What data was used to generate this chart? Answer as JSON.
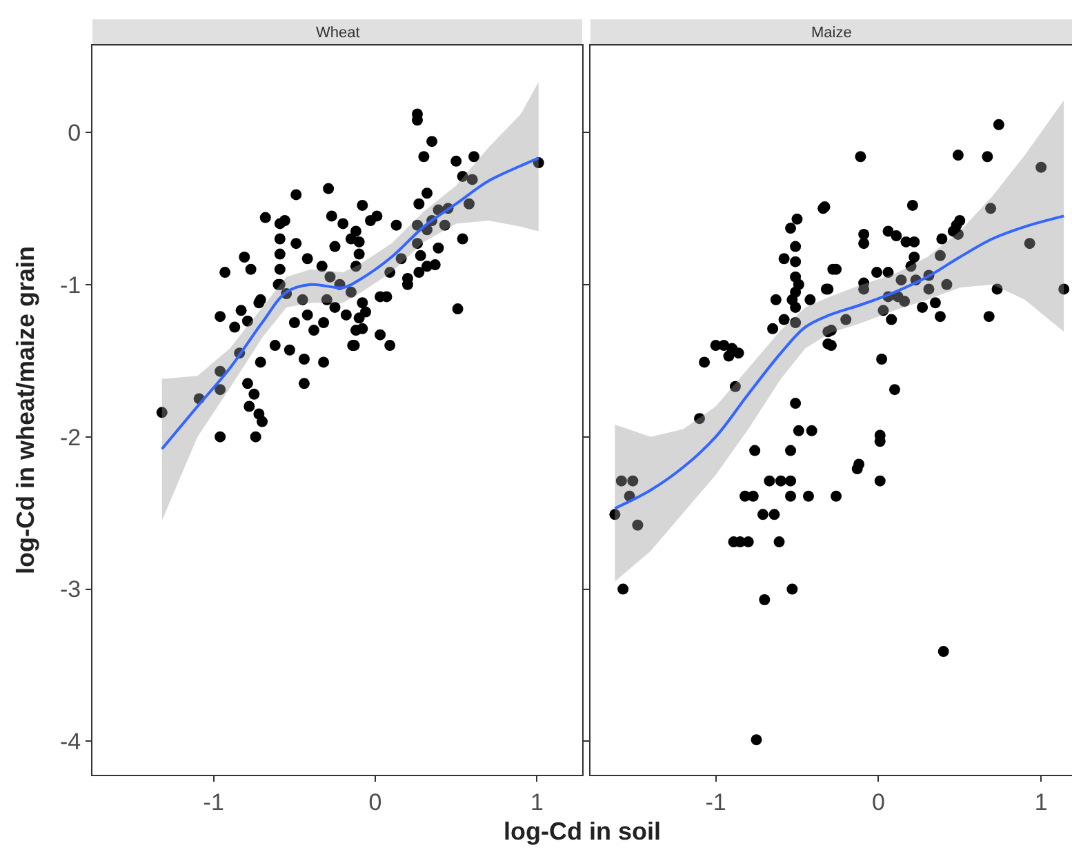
{
  "chart_data": [
    {
      "type": "scatter",
      "title": "Wheat",
      "xlabel": "log-Cd in soil",
      "ylabel": "log-Cd in wheat/maize grain",
      "xlim": [
        -1.75,
        1.28
      ],
      "xticks": [
        -1,
        0,
        1
      ],
      "ylim": [
        -4.22,
        0.57
      ],
      "yticks": [
        -4,
        -3,
        -2,
        -1,
        0
      ],
      "grid": false,
      "series": [
        {
          "marker": "circle",
          "color": "#000000",
          "x": [
            -1.32,
            -0.96,
            -0.74,
            -1.09,
            -0.96,
            -0.96,
            -0.84,
            -0.79,
            -0.75,
            -0.78,
            -0.72,
            -0.7,
            -0.71,
            -0.62,
            -0.53,
            -0.44,
            -0.44,
            -0.32,
            -0.14,
            -0.96,
            -0.87,
            -0.79,
            -0.83,
            -0.72,
            -0.93,
            -0.81,
            -0.77,
            -0.71,
            -0.68,
            -0.49,
            -0.29,
            -0.59,
            -0.59,
            -0.59,
            -0.59,
            -0.59,
            -0.56,
            -0.49,
            -0.42,
            -0.6,
            -0.55,
            -0.33,
            -0.28,
            -0.22,
            -0.15,
            -0.3,
            -0.25,
            -0.18,
            -0.32,
            -0.12,
            -0.42,
            -0.45,
            -0.5,
            -0.38,
            -0.27,
            -0.2,
            -0.15,
            -0.25,
            -0.1,
            0.26,
            0.26,
            0.35,
            0.3,
            0.5,
            0.61,
            0.54,
            0.6,
            1.01,
            0.32,
            0.27,
            -0.08,
            -0.03,
            0.01,
            0.13,
            0.39,
            0.45,
            0.58,
            0.26,
            0.35,
            0.32,
            0.43,
            0.54,
            0.26,
            0.28,
            0.39,
            0.37,
            0.32,
            0.27,
            0.16,
            0.09,
            0.2,
            0.2,
            -0.12,
            -0.1,
            -0.12,
            0.03,
            0.07,
            -0.08,
            -0.06,
            -0.1,
            -0.08,
            0.03,
            0.09,
            -0.13,
            0.51
          ],
          "values": [
            -1.84,
            -2.0,
            -2.0,
            -1.75,
            -1.57,
            -1.69,
            -1.45,
            -1.65,
            -1.72,
            -1.8,
            -1.85,
            -1.9,
            -1.51,
            -1.4,
            -1.43,
            -1.49,
            -1.65,
            -1.51,
            -1.4,
            -1.21,
            -1.28,
            -1.24,
            -1.17,
            -1.12,
            -0.92,
            -0.82,
            -0.9,
            -1.1,
            -0.56,
            -0.41,
            -0.37,
            -0.6,
            -0.7,
            -0.8,
            -0.9,
            -1.0,
            -0.58,
            -0.73,
            -0.83,
            -1.0,
            -1.06,
            -0.88,
            -0.95,
            -1.0,
            -1.05,
            -1.1,
            -1.15,
            -1.2,
            -1.25,
            -1.3,
            -1.2,
            -1.1,
            -1.25,
            -1.3,
            -0.55,
            -0.6,
            -0.7,
            -0.75,
            -0.8,
            0.12,
            0.08,
            -0.06,
            -0.16,
            -0.19,
            -0.16,
            -0.29,
            -0.31,
            -0.2,
            -0.4,
            -0.47,
            -0.48,
            -0.58,
            -0.55,
            -0.61,
            -0.51,
            -0.5,
            -0.47,
            -0.61,
            -0.58,
            -0.64,
            -0.61,
            -0.7,
            -0.73,
            -0.81,
            -0.76,
            -0.87,
            -0.88,
            -0.92,
            -0.83,
            -0.92,
            -0.96,
            -1.0,
            -0.65,
            -0.72,
            -0.88,
            -1.08,
            -1.08,
            -1.12,
            -1.18,
            -1.22,
            -1.29,
            -1.33,
            -1.4,
            -1.4,
            -1.16
          ]
        },
        {
          "type": "line",
          "color": "#3366ff",
          "x": [
            -1.32,
            -1.1,
            -0.9,
            -0.7,
            -0.55,
            -0.4,
            -0.2,
            -0.1,
            0.1,
            0.3,
            0.5,
            0.7,
            0.9,
            1.01
          ],
          "values": [
            -2.08,
            -1.8,
            -1.55,
            -1.25,
            -1.05,
            -1.0,
            -1.02,
            -0.97,
            -0.82,
            -0.62,
            -0.47,
            -0.32,
            -0.22,
            -0.17
          ],
          "lower": [
            -2.55,
            -2.0,
            -1.68,
            -1.35,
            -1.15,
            -1.12,
            -1.12,
            -1.06,
            -0.92,
            -0.72,
            -0.6,
            -0.58,
            -0.62,
            -0.65
          ],
          "upper": [
            -1.62,
            -1.6,
            -1.42,
            -1.15,
            -0.95,
            -0.9,
            -0.92,
            -0.87,
            -0.73,
            -0.52,
            -0.35,
            -0.1,
            0.12,
            0.33
          ]
        }
      ]
    },
    {
      "type": "scatter",
      "title": "Maize",
      "xlim": [
        -1.77,
        1.19
      ],
      "xticks": [
        -1,
        0,
        1
      ],
      "ylim": [
        -4.22,
        0.57
      ],
      "yticks": [
        -4,
        -3,
        -2,
        -1,
        0
      ],
      "grid": false,
      "tick_labels": "x",
      "series": [
        {
          "marker": "circle",
          "color": "#000000",
          "x": [
            -0.34,
            -0.5,
            -0.54,
            -0.51,
            -0.51,
            -0.51,
            -0.51,
            -0.51,
            -0.51,
            -0.49,
            -0.53,
            -0.58,
            -0.63,
            -0.58,
            -0.65,
            -0.42,
            -0.31,
            -0.28,
            -1.0,
            -0.95,
            -0.9,
            -0.86,
            -0.92,
            -1.07,
            -0.88,
            -1.1,
            -0.51,
            -0.49,
            -0.41,
            -0.76,
            -0.54,
            -0.29,
            -0.29,
            0.74,
            -0.11,
            0.49,
            0.67,
            1.0,
            -0.33,
            0.21,
            0.69,
            0.48,
            0.5,
            0.46,
            -0.09,
            -0.09,
            0.06,
            0.11,
            0.17,
            0.22,
            0.39,
            0.49,
            0.22,
            0.38,
            0.93,
            -0.26,
            -0.32,
            -0.01,
            0.06,
            0.2,
            -0.09,
            -0.09,
            0.14,
            0.23,
            0.31,
            0.42,
            0.31,
            0.06,
            0.12,
            0.03,
            0.08,
            0.16,
            0.27,
            0.35,
            0.73,
            1.14,
            0.38,
            0.68,
            -0.2,
            -0.31,
            -0.31,
            0.02,
            0.1,
            0.01,
            0.01,
            -0.12,
            -1.58,
            -1.51,
            -1.53,
            -1.62,
            -1.48,
            -1.57,
            -0.82,
            -0.77,
            -0.67,
            -0.6,
            -0.54,
            -0.54,
            -0.43,
            -0.26,
            -0.13,
            0.01,
            -0.71,
            -0.64,
            -0.89,
            -0.85,
            -0.8,
            -0.61,
            -0.53,
            -0.7,
            0.4,
            -0.75
          ],
          "values": [
            -0.5,
            -0.57,
            -0.63,
            -0.75,
            -0.85,
            -0.95,
            -1.05,
            -1.15,
            -1.25,
            -1.0,
            -1.1,
            -0.83,
            -1.1,
            -1.23,
            -1.29,
            -1.1,
            -1.03,
            -0.9,
            -1.4,
            -1.4,
            -1.42,
            -1.45,
            -1.47,
            -1.51,
            -1.67,
            -1.88,
            -1.78,
            -1.96,
            -1.96,
            -2.09,
            -2.09,
            -1.3,
            -1.4,
            0.05,
            -0.16,
            -0.15,
            -0.16,
            -0.23,
            -0.49,
            -0.48,
            -0.5,
            -0.61,
            -0.58,
            -0.65,
            -0.67,
            -0.73,
            -0.65,
            -0.68,
            -0.72,
            -0.72,
            -0.7,
            -0.67,
            -0.82,
            -0.81,
            -0.73,
            -0.9,
            -1.03,
            -0.92,
            -0.92,
            -0.88,
            -0.99,
            -1.03,
            -0.97,
            -0.97,
            -0.94,
            -1.0,
            -1.03,
            -1.08,
            -1.08,
            -1.17,
            -1.23,
            -1.11,
            -1.15,
            -1.12,
            -1.03,
            -1.03,
            -1.21,
            -1.21,
            -1.23,
            -1.31,
            -1.39,
            -1.49,
            -1.69,
            -1.99,
            -2.03,
            -2.18,
            -2.29,
            -2.29,
            -2.39,
            -2.51,
            -2.58,
            -3.0,
            -2.39,
            -2.39,
            -2.29,
            -2.29,
            -2.29,
            -2.39,
            -2.39,
            -2.39,
            -2.21,
            -2.29,
            -2.51,
            -2.51,
            -2.69,
            -2.69,
            -2.69,
            -2.69,
            -3.0,
            -3.07,
            -3.41,
            -3.99
          ]
        },
        {
          "type": "line",
          "color": "#3366ff",
          "x": [
            -1.62,
            -1.4,
            -1.2,
            -1.0,
            -0.8,
            -0.6,
            -0.45,
            -0.3,
            -0.1,
            0.1,
            0.3,
            0.5,
            0.7,
            0.9,
            1.14
          ],
          "values": [
            -2.47,
            -2.35,
            -2.2,
            -2.0,
            -1.72,
            -1.45,
            -1.28,
            -1.2,
            -1.13,
            -1.05,
            -0.95,
            -0.82,
            -0.7,
            -0.62,
            -0.55
          ],
          "lower": [
            -2.95,
            -2.75,
            -2.5,
            -2.25,
            -1.95,
            -1.62,
            -1.42,
            -1.32,
            -1.25,
            -1.17,
            -1.1,
            -1.02,
            -1.0,
            -1.1,
            -1.31
          ],
          "upper": [
            -1.92,
            -2.0,
            -1.95,
            -1.8,
            -1.55,
            -1.3,
            -1.15,
            -1.08,
            -1.0,
            -0.93,
            -0.82,
            -0.65,
            -0.42,
            -0.15,
            0.21
          ]
        }
      ]
    }
  ]
}
